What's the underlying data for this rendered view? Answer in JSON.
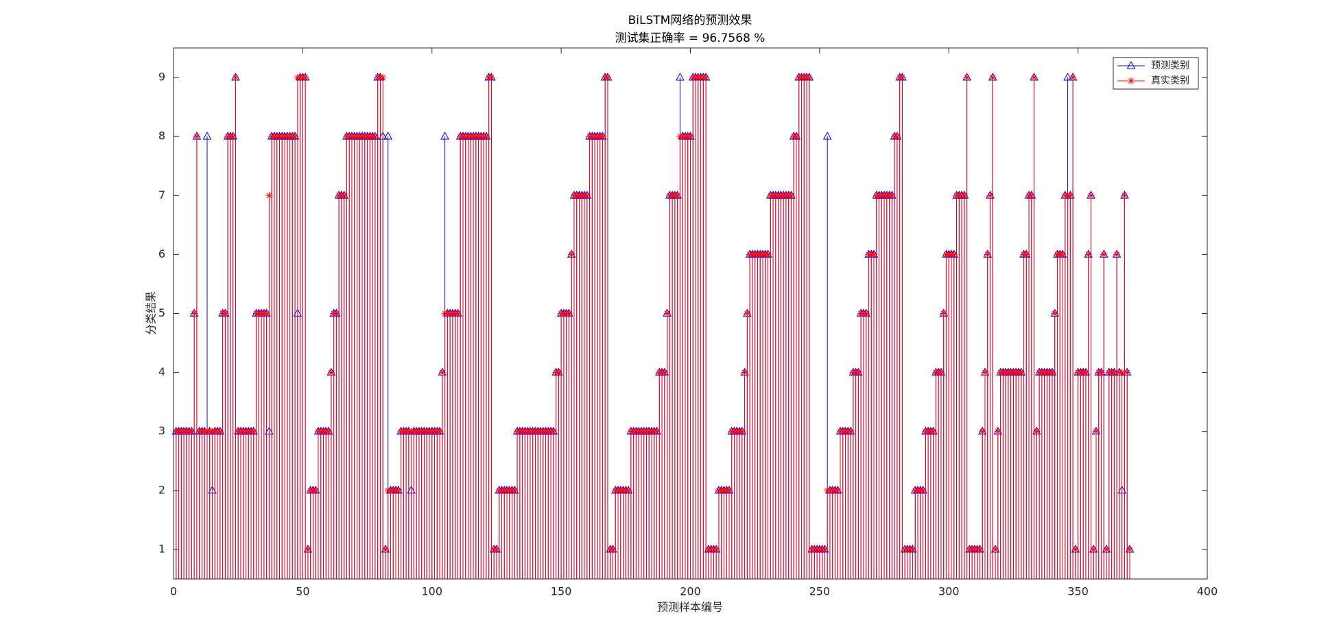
{
  "chart_data": {
    "type": "stem",
    "title": "BiLSTM网络的预测效果",
    "subtitle": "测试集正确率 = 96.7568 %",
    "xlabel": "预测样本编号",
    "ylabel": "分类结果",
    "xlim": [
      0,
      400
    ],
    "xticks": [
      0,
      50,
      100,
      150,
      200,
      250,
      300,
      350,
      400
    ],
    "ylim": [
      0.5,
      9.5
    ],
    "yticks": [
      1,
      2,
      3,
      4,
      5,
      6,
      7,
      8,
      9
    ],
    "legend": "upper right",
    "series": [
      {
        "name": "预测类别",
        "color": "#0000ff",
        "marker": "triangle",
        "values": [
          3,
          3,
          3,
          3,
          3,
          3,
          3,
          5,
          8,
          3,
          3,
          3,
          8,
          3,
          2,
          3,
          3,
          3,
          5,
          5,
          8,
          8,
          8,
          9,
          3,
          3,
          3,
          3,
          3,
          3,
          3,
          5,
          5,
          5,
          5,
          5,
          3,
          8,
          8,
          8,
          8,
          8,
          8,
          8,
          8,
          8,
          8,
          5,
          9,
          9,
          9,
          1,
          2,
          2,
          2,
          3,
          3,
          3,
          3,
          3,
          4,
          5,
          5,
          7,
          7,
          7,
          8,
          8,
          8,
          8,
          8,
          8,
          8,
          8,
          8,
          8,
          8,
          8,
          9,
          9,
          8,
          1,
          8,
          2,
          2,
          2,
          2,
          3,
          3,
          3,
          3,
          2,
          3,
          3,
          3,
          3,
          3,
          3,
          3,
          3,
          3,
          3,
          3,
          4,
          8,
          5,
          5,
          5,
          5,
          5,
          8,
          8,
          8,
          8,
          8,
          8,
          8,
          8,
          8,
          8,
          8,
          9,
          9,
          1,
          1,
          2,
          2,
          2,
          2,
          2,
          2,
          2,
          3,
          3,
          3,
          3,
          3,
          3,
          3,
          3,
          3,
          3,
          3,
          3,
          3,
          3,
          3,
          4,
          4,
          5,
          5,
          5,
          5,
          6,
          7,
          7,
          7,
          7,
          7,
          7,
          8,
          8,
          8,
          8,
          8,
          8,
          9,
          9,
          1,
          1,
          2,
          2,
          2,
          2,
          2,
          2,
          3,
          3,
          3,
          3,
          3,
          3,
          3,
          3,
          3,
          3,
          3,
          4,
          4,
          4,
          5,
          7,
          7,
          7,
          7,
          9,
          8,
          8,
          8,
          8,
          9,
          9,
          9,
          9,
          9,
          9,
          1,
          1,
          1,
          1,
          2,
          2,
          2,
          2,
          2,
          3,
          3,
          3,
          3,
          3,
          4,
          5,
          6,
          6,
          6,
          6,
          6,
          6,
          6,
          6,
          7,
          7,
          7,
          7,
          7,
          7,
          7,
          7,
          7,
          8,
          8,
          9,
          9,
          9,
          9,
          9,
          1,
          1,
          1,
          1,
          1,
          1,
          8,
          2,
          2,
          2,
          2,
          3,
          3,
          3,
          3,
          3,
          4,
          4,
          4,
          5,
          5,
          5,
          6,
          6,
          6,
          7,
          7,
          7,
          7,
          7,
          7,
          7,
          8,
          8,
          9,
          9,
          1,
          1,
          1,
          1,
          2,
          2,
          2,
          2,
          3,
          3,
          3,
          3,
          4,
          4,
          4,
          5,
          6,
          6,
          6,
          6,
          7,
          7,
          7,
          7,
          9,
          1,
          1,
          1,
          1,
          1,
          3,
          4,
          6,
          7,
          9,
          1,
          3,
          4,
          4,
          4,
          4,
          4,
          4,
          4,
          4,
          4,
          6,
          6,
          7,
          7,
          9,
          3,
          4,
          4,
          4,
          4,
          4,
          4,
          5,
          6,
          6,
          6,
          7,
          9,
          7,
          9,
          1,
          4,
          4,
          4,
          4,
          6,
          7,
          1,
          3,
          4,
          4,
          6,
          1,
          4,
          4,
          4,
          6,
          4,
          2,
          7,
          4,
          1
        ]
      },
      {
        "name": "真实类别",
        "color": "#ff0000",
        "marker": "asterisk",
        "values": [
          3,
          3,
          3,
          3,
          3,
          3,
          3,
          5,
          8,
          3,
          3,
          3,
          3,
          3,
          3,
          3,
          3,
          3,
          5,
          5,
          8,
          8,
          8,
          9,
          3,
          3,
          3,
          3,
          3,
          3,
          3,
          5,
          5,
          5,
          5,
          5,
          7,
          8,
          8,
          8,
          8,
          8,
          8,
          8,
          8,
          8,
          8,
          9,
          9,
          9,
          9,
          1,
          2,
          2,
          2,
          3,
          3,
          3,
          3,
          3,
          4,
          5,
          5,
          7,
          7,
          7,
          8,
          8,
          8,
          8,
          8,
          8,
          8,
          8,
          8,
          8,
          8,
          8,
          9,
          9,
          9,
          1,
          2,
          2,
          2,
          2,
          2,
          3,
          3,
          3,
          3,
          3,
          3,
          3,
          3,
          3,
          3,
          3,
          3,
          3,
          3,
          3,
          3,
          4,
          5,
          5,
          5,
          5,
          5,
          5,
          8,
          8,
          8,
          8,
          8,
          8,
          8,
          8,
          8,
          8,
          8,
          9,
          9,
          1,
          1,
          2,
          2,
          2,
          2,
          2,
          2,
          2,
          3,
          3,
          3,
          3,
          3,
          3,
          3,
          3,
          3,
          3,
          3,
          3,
          3,
          3,
          3,
          4,
          4,
          5,
          5,
          5,
          5,
          6,
          7,
          7,
          7,
          7,
          7,
          7,
          8,
          8,
          8,
          8,
          8,
          8,
          9,
          9,
          1,
          1,
          2,
          2,
          2,
          2,
          2,
          2,
          3,
          3,
          3,
          3,
          3,
          3,
          3,
          3,
          3,
          3,
          3,
          4,
          4,
          4,
          5,
          7,
          7,
          7,
          7,
          8,
          8,
          8,
          8,
          8,
          9,
          9,
          9,
          9,
          9,
          9,
          1,
          1,
          1,
          1,
          2,
          2,
          2,
          2,
          2,
          3,
          3,
          3,
          3,
          3,
          4,
          5,
          6,
          6,
          6,
          6,
          6,
          6,
          6,
          6,
          7,
          7,
          7,
          7,
          7,
          7,
          7,
          7,
          7,
          8,
          8,
          9,
          9,
          9,
          9,
          9,
          1,
          1,
          1,
          1,
          1,
          1,
          2,
          2,
          2,
          2,
          2,
          3,
          3,
          3,
          3,
          3,
          4,
          4,
          4,
          5,
          5,
          5,
          6,
          6,
          6,
          7,
          7,
          7,
          7,
          7,
          7,
          7,
          8,
          8,
          9,
          9,
          1,
          1,
          1,
          1,
          2,
          2,
          2,
          2,
          3,
          3,
          3,
          3,
          4,
          4,
          4,
          5,
          6,
          6,
          6,
          6,
          7,
          7,
          7,
          7,
          9,
          1,
          1,
          1,
          1,
          1,
          3,
          4,
          6,
          7,
          9,
          1,
          3,
          4,
          4,
          4,
          4,
          4,
          4,
          4,
          4,
          4,
          6,
          6,
          7,
          7,
          9,
          3,
          4,
          4,
          4,
          4,
          4,
          4,
          5,
          6,
          6,
          6,
          7,
          7,
          7,
          9,
          1,
          4,
          4,
          4,
          4,
          6,
          7,
          1,
          3,
          4,
          4,
          6,
          1,
          4,
          4,
          4,
          6,
          4,
          4,
          7,
          4,
          1
        ]
      }
    ]
  }
}
